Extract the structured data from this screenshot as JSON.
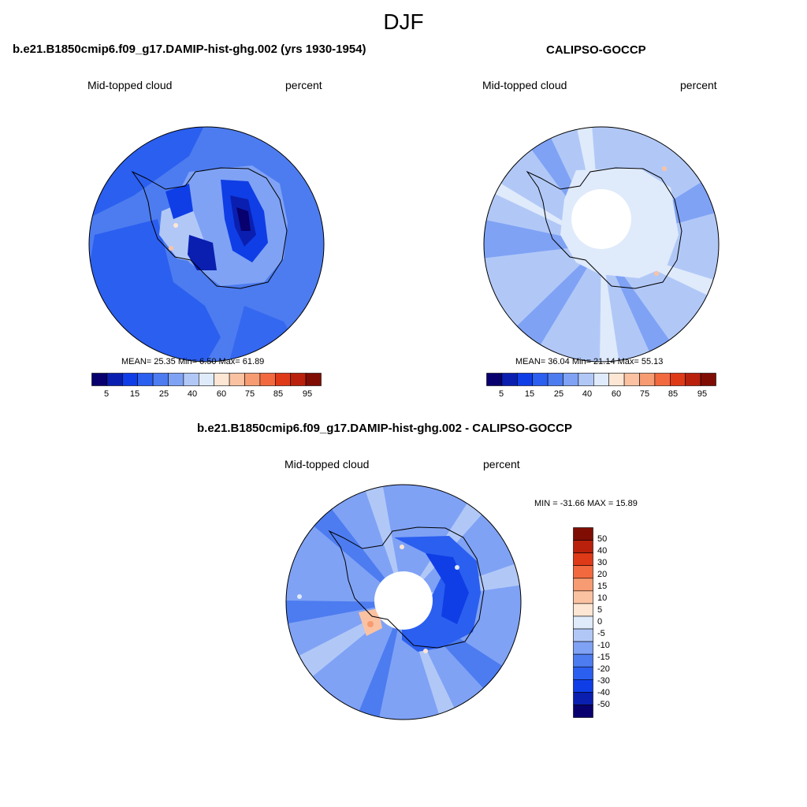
{
  "figure": {
    "title": "DJF",
    "colors": {
      "abs_palette": [
        "#08006e",
        "#0a1fb0",
        "#0f3ee6",
        "#2b5ff0",
        "#4d7cf0",
        "#7fa2f5",
        "#b1c8f7",
        "#dfeafb",
        "#fde6d3",
        "#fbc2a2",
        "#f69b72",
        "#f2693f",
        "#df3a18",
        "#b9210c",
        "#7f0d04"
      ],
      "diff_palette": [
        "#08006e",
        "#0a1fb0",
        "#0f3ee6",
        "#2b5ff0",
        "#4d7cf0",
        "#7fa2f5",
        "#b1c8f7",
        "#dfeafb",
        "#fde6d3",
        "#fbc2a2",
        "#f69b72",
        "#f2693f",
        "#df3a18",
        "#b9210c",
        "#7f0d04"
      ],
      "coastline": "#000000"
    }
  },
  "panels": [
    {
      "title": "b.e21.B1850cmip6.f09_g17.DAMIP-hist-ghg.002 (yrs 1930-1954)",
      "left_label": "Mid-topped cloud",
      "right_label": "percent",
      "stats": "MEAN=  25.35  Min=   6.50  Max=  61.89",
      "colorbar_ticks": [
        "5",
        "15",
        "25",
        "40",
        "60",
        "75",
        "85",
        "95"
      ]
    },
    {
      "title": "CALIPSO-GOCCP",
      "left_label": "Mid-topped cloud",
      "right_label": "percent",
      "stats": "MEAN=  36.04  Min=  21.14  Max=  55.13",
      "colorbar_ticks": [
        "5",
        "15",
        "25",
        "40",
        "60",
        "75",
        "85",
        "95"
      ]
    },
    {
      "title": "b.e21.B1850cmip6.f09_g17.DAMIP-hist-ghg.002 - CALIPSO-GOCCP",
      "left_label": "Mid-topped cloud",
      "right_label": "percent",
      "stats": "MIN = -31.66 MAX =  15.89",
      "colorbar_ticks": [
        "50",
        "40",
        "30",
        "20",
        "15",
        "10",
        "5",
        "0",
        "-5",
        "-10",
        "-15",
        "-20",
        "-30",
        "-40",
        "-50"
      ]
    }
  ]
}
